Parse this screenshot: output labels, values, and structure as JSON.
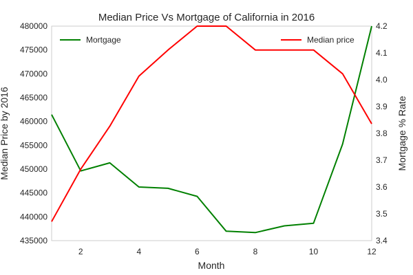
{
  "chart_data": {
    "type": "line",
    "title": "Median Price Vs Mortgage of California in 2016",
    "xlabel": "Month",
    "ylabel_left": "Median Price by 2016",
    "ylabel_right": "Mortgage % Rate",
    "xlim": [
      1,
      12
    ],
    "xticks": [
      2,
      4,
      6,
      8,
      10,
      12
    ],
    "ylim_left": [
      435000,
      480000
    ],
    "yticks_left": [
      435000,
      440000,
      445000,
      450000,
      455000,
      460000,
      465000,
      470000,
      475000,
      480000
    ],
    "ylim_right": [
      3.4,
      4.2
    ],
    "yticks_right": [
      "3.4",
      "3.5",
      "3.6",
      "3.7",
      "3.8",
      "3.9",
      "4.0",
      "4.1",
      "4.2"
    ],
    "grid": false,
    "legend_left_placement": "top-left",
    "legend_right_placement": "top-right",
    "series": [
      {
        "name": "Mortgage",
        "axis": "right",
        "color": "#008000",
        "x": [
          1,
          2,
          3,
          4,
          5,
          6,
          7,
          8,
          9,
          10,
          11,
          12
        ],
        "y": [
          3.87,
          3.66,
          3.69,
          3.6,
          3.595,
          3.565,
          3.435,
          3.43,
          3.455,
          3.465,
          3.76,
          4.2
        ]
      },
      {
        "name": "Median price",
        "axis": "left",
        "color": "#ff0000",
        "x": [
          1,
          2,
          3,
          4,
          5,
          6,
          7,
          8,
          9,
          10,
          11,
          12
        ],
        "y": [
          439000,
          450000,
          459000,
          469500,
          475000,
          480000,
          480000,
          475000,
          475000,
          475000,
          470000,
          459500
        ]
      }
    ]
  }
}
